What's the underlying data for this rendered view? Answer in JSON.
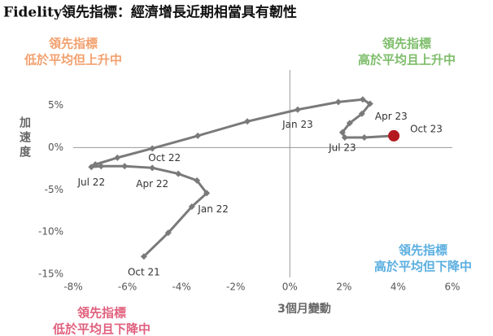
{
  "chart_data": {
    "type": "line",
    "title": "Fidelity領先指標：經濟增長近期相當具有韌性",
    "x_label": "3個月變動",
    "y_label": "加速度",
    "xlim": [
      -8,
      6
    ],
    "ylim": [
      -15,
      9.2
    ],
    "xticks": [
      {
        "value": -8,
        "label": "-8%"
      },
      {
        "value": -6,
        "label": "-6%"
      },
      {
        "value": -4,
        "label": "-4%"
      },
      {
        "value": -2,
        "label": "-2%"
      },
      {
        "value": 0,
        "label": "0%"
      },
      {
        "value": 2,
        "label": "2%"
      },
      {
        "value": 4,
        "label": "4%"
      },
      {
        "value": 6,
        "label": "6%"
      }
    ],
    "yticks": [
      {
        "value": 5,
        "label": "5%"
      },
      {
        "value": 0,
        "label": "0%"
      },
      {
        "value": -5,
        "label": "-5%"
      },
      {
        "value": -10,
        "label": "-10%"
      },
      {
        "value": -15,
        "label": "-15%"
      }
    ],
    "series": [
      {
        "color": "#7a7a7a",
        "highlight_color": "#b3191e",
        "x": [
          -5.39,
          -4.49,
          -3.62,
          -3.07,
          -3.43,
          -4.12,
          -5.08,
          -6.1,
          -6.97,
          -7.33,
          -7.18,
          -6.37,
          -5.08,
          -3.4,
          -1.57,
          0.29,
          1.79,
          2.69,
          2.96,
          2.66,
          2.21,
          1.94,
          2.03,
          2.75,
          3.84
        ],
        "values": [
          -12.9,
          -10.1,
          -7.0,
          -5.4,
          -3.9,
          -3.1,
          -2.4,
          -2.2,
          -2.2,
          -2.3,
          -2.0,
          -1.2,
          -0.1,
          1.4,
          3.1,
          4.5,
          5.4,
          5.7,
          5.2,
          4.0,
          2.9,
          1.8,
          1.2,
          1.2,
          1.4
        ],
        "point_labels": [
          "Oct 21",
          null,
          null,
          "Jan 22",
          null,
          null,
          "Apr 22",
          null,
          null,
          "Jul 22",
          null,
          null,
          "Oct 22",
          null,
          null,
          "Jan 23",
          null,
          null,
          "Apr 23",
          null,
          null,
          "Jul 23",
          null,
          null,
          "Oct 23"
        ]
      }
    ],
    "quadrants": [
      {
        "title": "領先指標",
        "text": "低於平均但上升中",
        "color": "#f2a06e"
      },
      {
        "title": "領先指標",
        "text": "高於平均且上升中",
        "color": "#7dbd6a"
      },
      {
        "title": "領先指標",
        "text": "高於平均但下降中",
        "color": "#5aaee0"
      },
      {
        "title": "領先指標",
        "text": "低於平均且下降中",
        "color": "#e0607e"
      }
    ]
  }
}
